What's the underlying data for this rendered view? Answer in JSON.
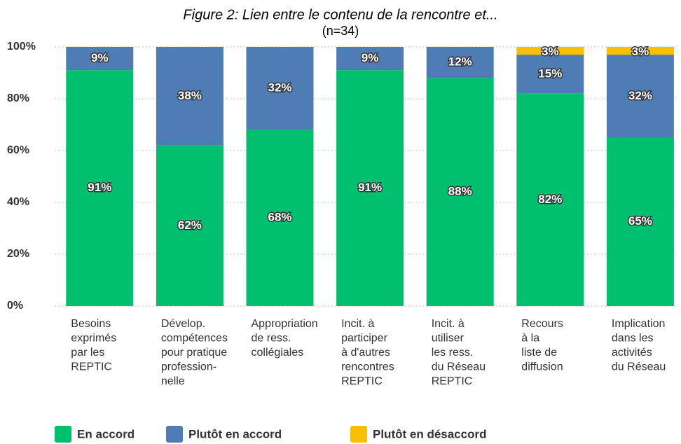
{
  "chart_data": {
    "type": "stacked_bar",
    "title": "Figure 2: Lien entre le contenu de la rencontre et...",
    "subtitle": "(n=34)",
    "categories": [
      [
        "Besoins",
        "exprimés",
        "par les",
        "REPTIC"
      ],
      [
        "Dévelop.",
        "compétences",
        "pour pratique",
        "profession-",
        "nelle"
      ],
      [
        "Appropriation",
        "de ress.",
        "collégiales"
      ],
      [
        "Incit. à",
        "participer",
        "à d'autres",
        "rencontres",
        "REPTIC"
      ],
      [
        "Incit. à",
        "utiliser",
        "les ress.",
        "du Réseau",
        "REPTIC"
      ],
      [
        "Recours",
        "à la",
        "liste de",
        "diffusion"
      ],
      [
        "Implication",
        "dans les",
        "activités",
        "du Réseau"
      ]
    ],
    "series": [
      {
        "name": "En accord",
        "color": "#00bf6f",
        "values": [
          91,
          62,
          68,
          91,
          88,
          82,
          65
        ],
        "value_labels": [
          "91%",
          "62%",
          "68%",
          "91%",
          "88%",
          "82%",
          "65%"
        ]
      },
      {
        "name": "Plutôt en accord",
        "color": "#507cb6",
        "values": [
          9,
          38,
          32,
          9,
          12,
          15,
          32
        ],
        "value_labels": [
          "9%",
          "38%",
          "32%",
          "9%",
          "12%",
          "15%",
          "32%"
        ]
      },
      {
        "name": "Plutôt en désaccord",
        "color": "#f9be00",
        "values": [
          0,
          0,
          0,
          0,
          0,
          3,
          3
        ],
        "value_labels": [
          null,
          null,
          null,
          null,
          null,
          "3%",
          "3%"
        ]
      }
    ],
    "ylim": [
      0,
      100
    ],
    "yticks": [
      {
        "value": 0,
        "label": "0%"
      },
      {
        "value": 20,
        "label": "20%"
      },
      {
        "value": 40,
        "label": "40%"
      },
      {
        "value": 60,
        "label": "60%"
      },
      {
        "value": 80,
        "label": "80%"
      },
      {
        "value": 100,
        "label": "100%"
      }
    ],
    "grid": true,
    "legend": "bottom-left"
  }
}
